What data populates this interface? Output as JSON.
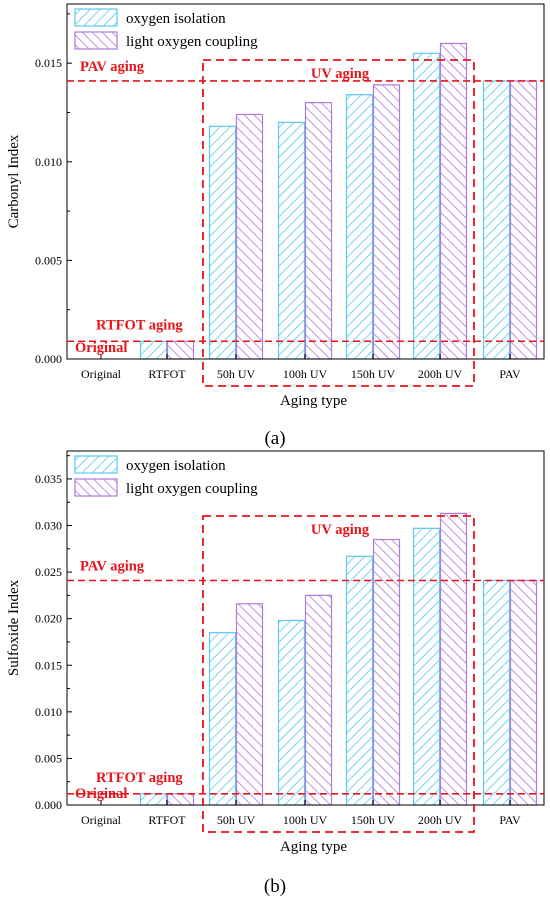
{
  "chart_data": [
    {
      "type": "bar",
      "panel_label": "a",
      "xlabel": "Aging type",
      "ylabel": "Carbonyl Index",
      "ylim": [
        0,
        0.018
      ],
      "yticks": [
        "0.000",
        "0.005",
        "0.010",
        "0.015"
      ],
      "categories": [
        "Original",
        "RTFOT",
        "50h UV",
        "100h UV",
        "150h UV",
        "200h UV",
        "PAV"
      ],
      "series": [
        {
          "name": "oxygen isolation",
          "values": [
            0,
            0.0009,
            0.0118,
            0.012,
            0.0134,
            0.0155,
            0.0141
          ],
          "color": "#5bc8ee"
        },
        {
          "name": "light oxygen coupling",
          "values": [
            0,
            0.0009,
            0.0124,
            0.013,
            0.0139,
            0.016,
            0.0141
          ],
          "color": "#b07ad9"
        }
      ],
      "reference_lines": [
        {
          "label": "PAV aging",
          "value": 0.0141
        },
        {
          "label": "RTFOT aging",
          "value": 0.0009
        },
        {
          "label": "Original",
          "value": 0.0
        }
      ],
      "box_label": "UV aging",
      "legend_position": "top-left",
      "grid": false
    },
    {
      "type": "bar",
      "panel_label": "b",
      "xlabel": "Aging type",
      "ylabel": "Sulfoxide Index",
      "ylim": [
        0,
        0.038
      ],
      "yticks": [
        "0.000",
        "0.005",
        "0.010",
        "0.015",
        "0.020",
        "0.025",
        "0.030",
        "0.035"
      ],
      "categories": [
        "Original",
        "RTFOT",
        "50h UV",
        "100h UV",
        "150h UV",
        "200h UV",
        "PAV"
      ],
      "series": [
        {
          "name": "oxygen isolation",
          "values": [
            0,
            0.0012,
            0.0185,
            0.0198,
            0.0267,
            0.0297,
            0.0241
          ],
          "color": "#5bc8ee"
        },
        {
          "name": "light oxygen coupling",
          "values": [
            0,
            0.0012,
            0.0216,
            0.0225,
            0.0285,
            0.0313,
            0.0241
          ],
          "color": "#b07ad9"
        }
      ],
      "reference_lines": [
        {
          "label": "PAV aging",
          "value": 0.0241
        },
        {
          "label": "RTFOT aging",
          "value": 0.0012
        },
        {
          "label": "Original",
          "value": 0.0
        }
      ],
      "box_label": "UV aging",
      "legend_position": "top-left",
      "grid": false
    }
  ],
  "captions": {
    "a": "(a)",
    "b": "(b)"
  },
  "annotation_color": "#e8141b"
}
